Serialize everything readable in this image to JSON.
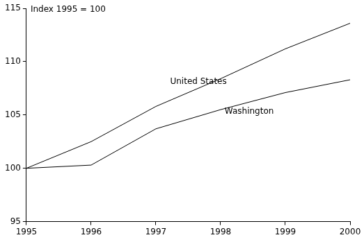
{
  "chart_data": {
    "type": "line",
    "y_label": "Index 1995 = 100",
    "x": [
      1995,
      1996,
      1997,
      1998,
      1999,
      2000
    ],
    "series": [
      {
        "name": "United States",
        "color": "#000000",
        "values": [
          100,
          102.5,
          105.8,
          108.4,
          111.2,
          113.6
        ]
      },
      {
        "name": "Washington",
        "color": "#000000",
        "values": [
          100,
          100.3,
          103.7,
          105.5,
          107.1,
          108.3
        ]
      }
    ],
    "xlim": [
      1995,
      2000
    ],
    "xticks": [
      1995,
      1996,
      1997,
      1998,
      1999,
      2000
    ],
    "ylim": [
      95,
      115
    ],
    "yticks": [
      95,
      100,
      105,
      110,
      115
    ],
    "grid": false,
    "legend": "none"
  }
}
